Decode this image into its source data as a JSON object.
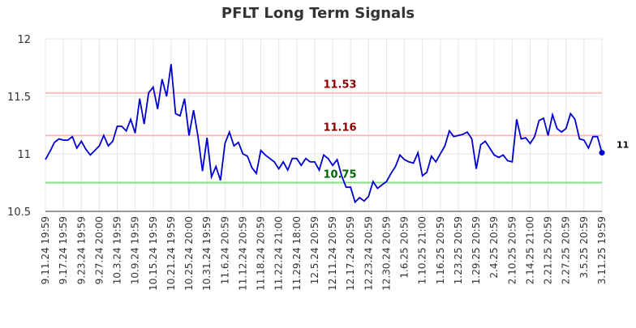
{
  "chart_data": {
    "type": "line",
    "title": "PFLT Long Term Signals",
    "xlabel": "",
    "ylabel": "",
    "ylim": [
      10.5,
      12
    ],
    "yticks": [
      "10.5",
      "11",
      "11.5",
      "12"
    ],
    "x_tick_labels": [
      "9.11.24 19:59",
      "9.17.24 19:59",
      "9.23.24 19:59",
      "9.27.24 20:00",
      "10.3.24 19:59",
      "10.9.24 19:59",
      "10.15.24 19:59",
      "10.21.24 19:59",
      "10.25.24 20:00",
      "10.31.24 19:59",
      "11.6.24 20:59",
      "11.12.24 20:59",
      "11.18.24 20:59",
      "11.22.24 21:00",
      "11.29.24 18:00",
      "12.5.24 20:59",
      "12.11.24 20:59",
      "12.17.24 20:59",
      "12.23.24 20:59",
      "12.30.24 20:59",
      "1.6.25 20:59",
      "1.10.25 21:00",
      "1.16.25 20:59",
      "1.23.25 20:59",
      "1.29.25 20:59",
      "2.4.25 20:59",
      "2.10.25 20:59",
      "2.14.25 21:00",
      "2.21.25 20:59",
      "2.27.25 20:59",
      "3.5.25 20:59",
      "3.11.25 19:59"
    ],
    "grid": true,
    "series": [
      {
        "color": "#0000cc",
        "values": [
          10.95,
          11.02,
          11.1,
          11.13,
          11.12,
          11.12,
          11.15,
          11.05,
          11.11,
          11.04,
          10.99,
          11.03,
          11.07,
          11.16,
          11.07,
          11.11,
          11.24,
          11.24,
          11.2,
          11.3,
          11.18,
          11.48,
          11.26,
          11.53,
          11.58,
          11.39,
          11.65,
          11.5,
          11.78,
          11.35,
          11.33,
          11.48,
          11.16,
          11.38,
          11.15,
          10.85,
          11.14,
          10.8,
          10.89,
          10.77,
          11.09,
          11.19,
          11.07,
          11.1,
          11.0,
          10.98,
          10.88,
          10.83,
          11.03,
          10.99,
          10.96,
          10.93,
          10.87,
          10.93,
          10.86,
          10.96,
          10.96,
          10.9,
          10.96,
          10.93,
          10.93,
          10.86,
          10.99,
          10.96,
          10.9,
          10.95,
          10.81,
          10.71,
          10.71,
          10.58,
          10.62,
          10.59,
          10.63,
          10.76,
          10.7,
          10.73,
          10.76,
          10.83,
          10.89,
          10.99,
          10.95,
          10.93,
          10.92,
          11.01,
          10.81,
          10.84,
          10.98,
          10.93,
          11.0,
          11.07,
          11.2,
          11.15,
          11.16,
          11.17,
          11.19,
          11.13,
          10.87,
          11.08,
          11.11,
          11.05,
          10.99,
          10.97,
          10.99,
          10.94,
          10.93,
          11.3,
          11.13,
          11.14,
          11.09,
          11.15,
          11.29,
          11.31,
          11.16,
          11.34,
          11.22,
          11.19,
          11.22,
          11.35,
          11.3,
          11.13,
          11.12,
          11.05,
          11.15,
          11.15,
          11.01
        ]
      }
    ],
    "reference_lines": [
      {
        "value": 11.53,
        "label": "11.53",
        "line_color": "#ffbbbb",
        "label_color": "#8b0000"
      },
      {
        "value": 11.16,
        "label": "11.16",
        "line_color": "#ffbbbb",
        "label_color": "#8b0000"
      },
      {
        "value": 10.75,
        "label": "10.75",
        "line_color": "#88dd88",
        "label_color": "#006400"
      }
    ],
    "last_value_label": "11"
  }
}
